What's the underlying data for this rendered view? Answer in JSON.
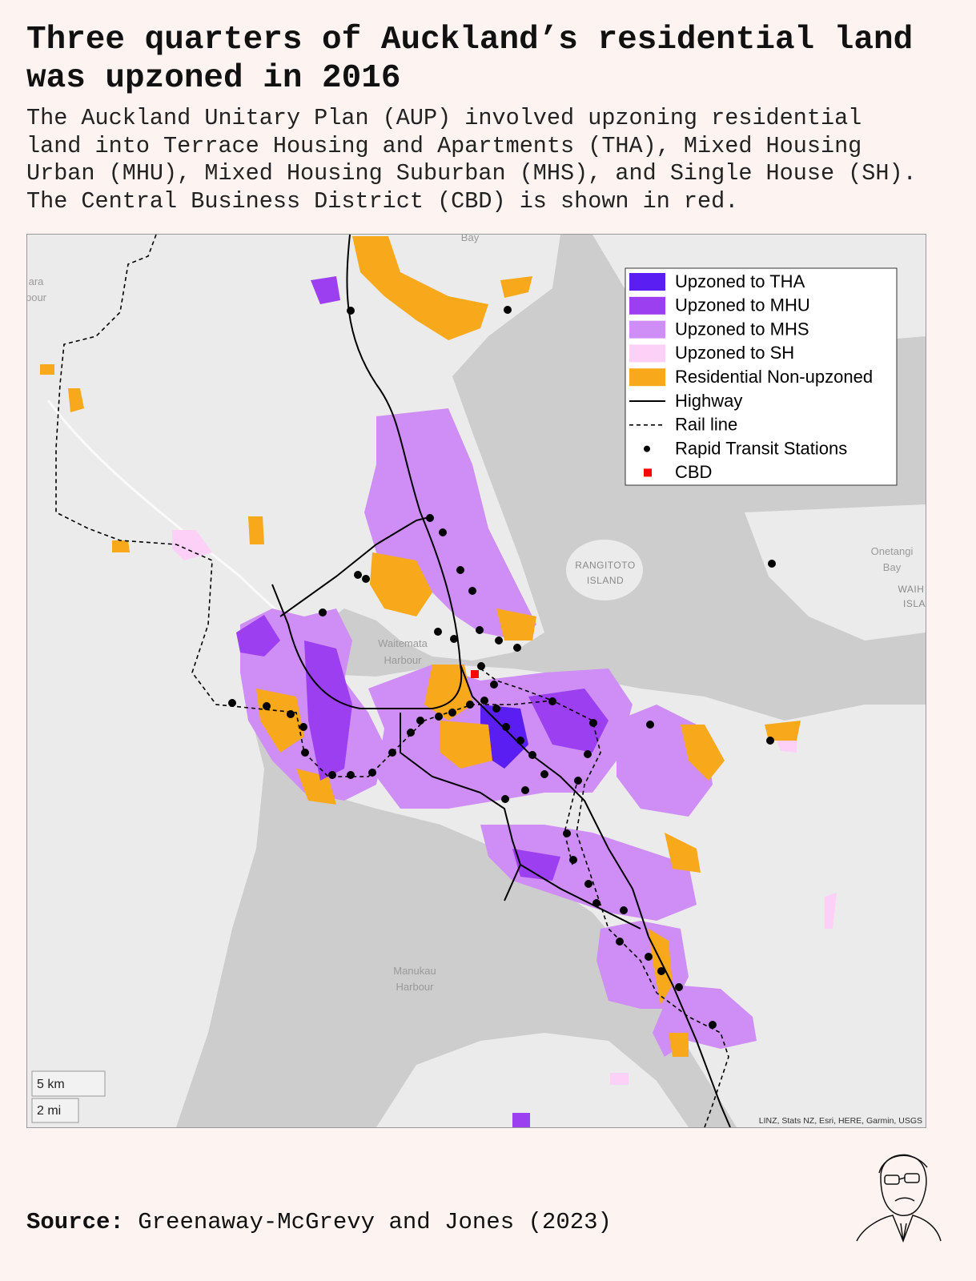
{
  "header": {
    "title": [
      "Three quarters of Auckland’s residential land",
      "was upzoned in 2016"
    ],
    "subtitle": [
      "The Auckland Unitary Plan (AUP) involved upzoning residential",
      "land into Terrace Housing and Apartments (THA), Mixed Housing",
      "Urban (MHU), Mixed Housing Suburban (MHS), and Single House (SH).",
      "The Central Business District (CBD) is shown in red."
    ]
  },
  "map": {
    "legend": [
      {
        "label": "Upzoned to THA",
        "color": "#5a1ef2",
        "symbol": "swatch"
      },
      {
        "label": "Upzoned to MHU",
        "color": "#9c3ff0",
        "symbol": "swatch"
      },
      {
        "label": "Upzoned to MHS",
        "color": "#cf8ef5",
        "symbol": "swatch"
      },
      {
        "label": "Upzoned to SH",
        "color": "#fdd0f8",
        "symbol": "swatch"
      },
      {
        "label": "Residential Non-upzoned",
        "color": "#f7a81b",
        "symbol": "swatch"
      },
      {
        "label": "Highway",
        "color": "#000000",
        "symbol": "line"
      },
      {
        "label": "Rail line",
        "color": "#000000",
        "symbol": "dashed"
      },
      {
        "label": "Rapid Transit Stations",
        "color": "#000000",
        "symbol": "dot"
      },
      {
        "label": "CBD",
        "color": "#ff0000",
        "symbol": "square"
      }
    ],
    "place_labels": [
      [
        "Bay"
      ],
      [
        "ara",
        "bour"
      ],
      [
        "RANGITOTO",
        "ISLAND"
      ],
      [
        "Onetangi",
        "Bay"
      ],
      [
        "WAIH",
        "ISLA"
      ],
      [
        "Waitemata",
        "Harbour"
      ],
      [
        "Manukau",
        "Harbour"
      ]
    ],
    "scale": [
      "5 km",
      "2 mi"
    ],
    "attribution": "LINZ, Stats NZ, Esri, HERE, Garmin, USGS"
  },
  "footer": {
    "source_label": "Source:",
    "source": "Greenaway-McGrevy and Jones (2023)"
  }
}
